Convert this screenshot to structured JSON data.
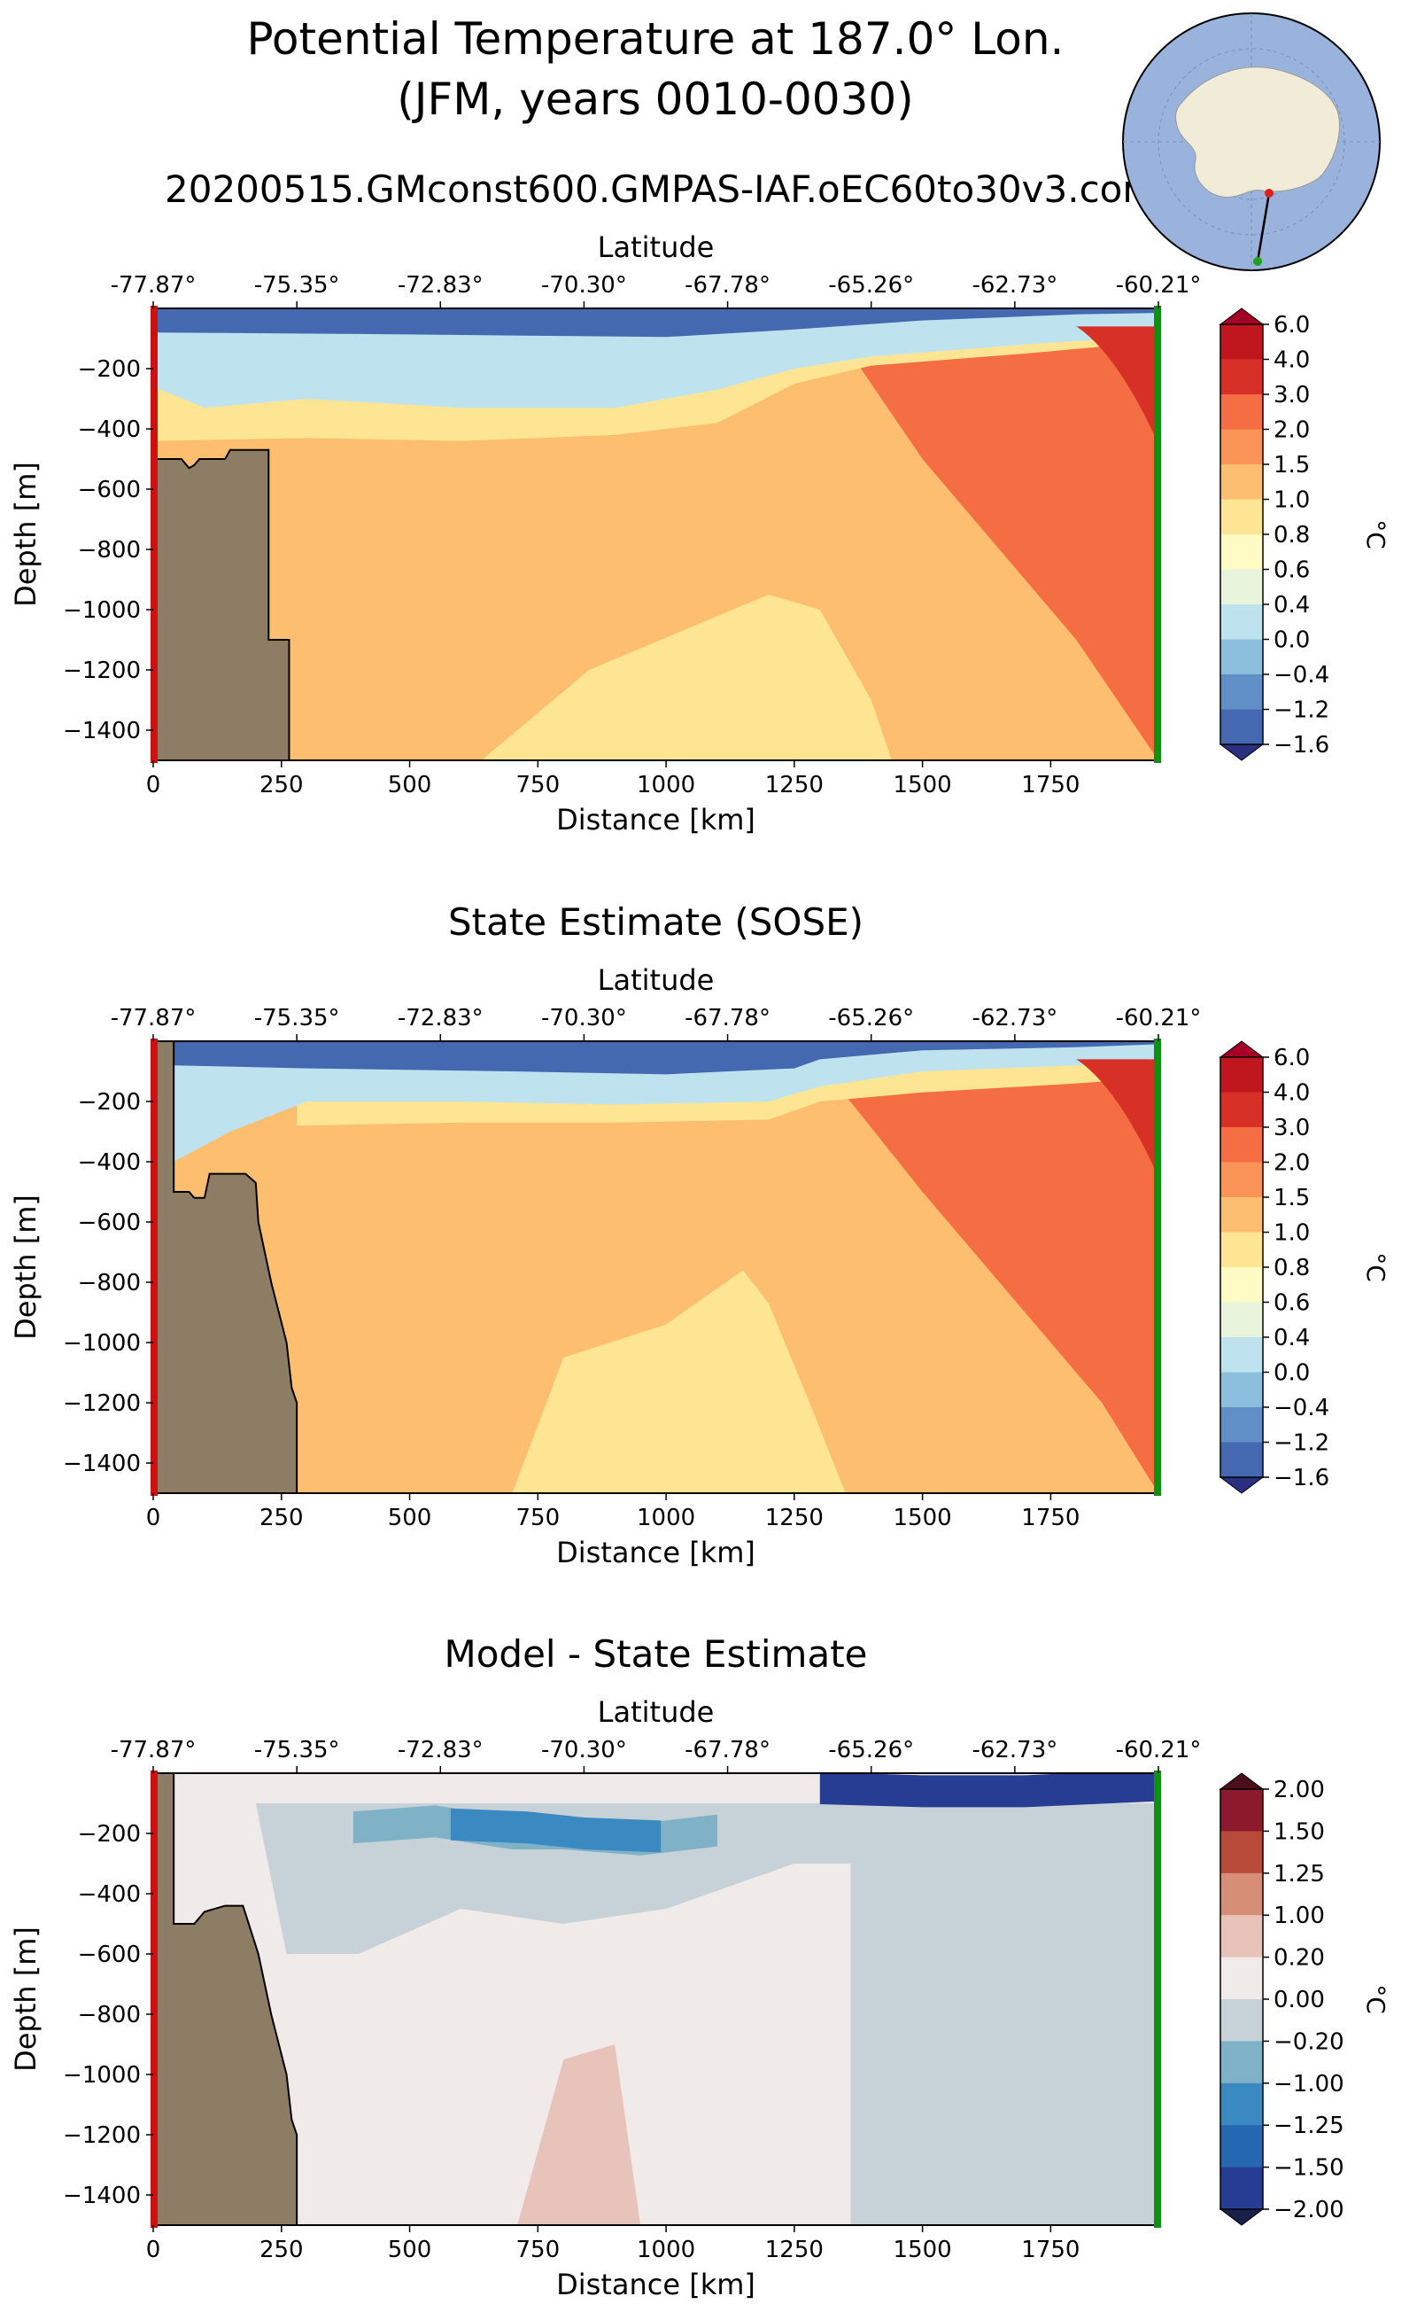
{
  "figure": {
    "title_line1": "Potential Temperature at 187.0° Lon.",
    "title_line2": "(JFM, years 0010-0030)",
    "subtitle": "20200515.GMconst600.GMPAS-IAF.oEC60to30v3.con"
  },
  "chart_data": [
    {
      "type": "heatmap",
      "title": "",
      "xlabel": "Distance [km]",
      "ylabel": "Depth [m]",
      "top_axis_label": "Latitude",
      "xlim": [
        0,
        1960
      ],
      "ylim": [
        -1500,
        0
      ],
      "x_ticks": [
        0,
        250,
        500,
        750,
        1000,
        1250,
        1500,
        1750
      ],
      "y_ticks": [
        -200,
        -400,
        -600,
        -800,
        -1000,
        -1200,
        -1400
      ],
      "lat_ticks": [
        "-77.87°",
        "-75.35°",
        "-72.83°",
        "-70.30°",
        "-67.78°",
        "-65.26°",
        "-62.73°",
        "-60.21°"
      ],
      "colorbar_label": "°C",
      "colorbar_levels": [
        "6.0",
        "4.0",
        "3.0",
        "2.0",
        "1.5",
        "1.0",
        "0.8",
        "0.6",
        "0.4",
        "0.0",
        "−0.4",
        "−1.2",
        "−1.6"
      ],
      "colorbar_colors": [
        "#c0171f",
        "#d73027",
        "#f46d43",
        "#f99456",
        "#fdbe70",
        "#fee594",
        "#fffbc4",
        "#e8f5dc",
        "#bfe3ee",
        "#8cbfdd",
        "#5f8fc6",
        "#4569b0",
        "#313695"
      ],
      "bathymetry": {
        "x": [
          0,
          10,
          55,
          65,
          70,
          80,
          90,
          100,
          140,
          150,
          160,
          225,
          225,
          265,
          265
        ],
        "depth": [
          -500,
          -500,
          -500,
          -520,
          -530,
          -520,
          -500,
          -500,
          -500,
          -470,
          -470,
          -470,
          -1100,
          -1100,
          -1500
        ]
      },
      "section_contours": [
        {
          "level": "-1.6",
          "x": [
            0,
            400,
            700,
            1000,
            1250,
            1500,
            1800,
            1960
          ],
          "depth": [
            -80,
            -85,
            -90,
            -95,
            -70,
            -40,
            -20,
            -15
          ]
        },
        {
          "level": "0.0",
          "x": [
            0,
            100,
            300,
            600,
            900,
            1100,
            1250,
            1400,
            1700,
            1960
          ],
          "depth": [
            -260,
            -330,
            -300,
            -330,
            -330,
            -270,
            -200,
            -160,
            -120,
            -90
          ]
        },
        {
          "level": "1.0",
          "x": [
            0,
            300,
            600,
            900,
            1100,
            1250,
            1400,
            1700,
            1960
          ],
          "depth": [
            -440,
            -430,
            -440,
            -420,
            -380,
            -250,
            -190,
            -150,
            -110
          ]
        },
        {
          "level": "0.8 (deep)",
          "x": [
            640,
            850,
            1200,
            1300,
            1400,
            1440
          ],
          "depth": [
            -1500,
            -1200,
            -950,
            -1000,
            -1300,
            -1500
          ]
        },
        {
          "level": "2.0",
          "x": [
            1380,
            1500,
            1650,
            1800,
            1960
          ],
          "depth": [
            -200,
            -500,
            -800,
            -1100,
            -1500
          ]
        }
      ]
    },
    {
      "type": "heatmap",
      "title": "State Estimate (SOSE)",
      "xlabel": "Distance [km]",
      "ylabel": "Depth [m]",
      "top_axis_label": "Latitude",
      "xlim": [
        0,
        1960
      ],
      "ylim": [
        -1500,
        0
      ],
      "x_ticks": [
        0,
        250,
        500,
        750,
        1000,
        1250,
        1500,
        1750
      ],
      "y_ticks": [
        -200,
        -400,
        -600,
        -800,
        -1000,
        -1200,
        -1400
      ],
      "lat_ticks": [
        "-77.87°",
        "-75.35°",
        "-72.83°",
        "-70.30°",
        "-67.78°",
        "-65.26°",
        "-62.73°",
        "-60.21°"
      ],
      "colorbar_label": "°C",
      "colorbar_levels": [
        "6.0",
        "4.0",
        "3.0",
        "2.0",
        "1.5",
        "1.0",
        "0.8",
        "0.6",
        "0.4",
        "0.0",
        "−0.4",
        "−1.2",
        "−1.6"
      ],
      "colorbar_colors": [
        "#c0171f",
        "#d73027",
        "#f46d43",
        "#f99456",
        "#fdbe70",
        "#fee594",
        "#fffbc4",
        "#e8f5dc",
        "#bfe3ee",
        "#8cbfdd",
        "#5f8fc6",
        "#4569b0",
        "#313695"
      ],
      "bathymetry": {
        "x": [
          0,
          40,
          40,
          70,
          80,
          100,
          110,
          120,
          140,
          150,
          180,
          200,
          205,
          230,
          260,
          270,
          280,
          280
        ],
        "depth": [
          0,
          0,
          -500,
          -500,
          -520,
          -520,
          -440,
          -440,
          -440,
          -440,
          -440,
          -470,
          -600,
          -800,
          -1000,
          -1150,
          -1200,
          -1500
        ]
      },
      "section_contours": [
        {
          "level": "-1.6",
          "x": [
            40,
            300,
            700,
            1000,
            1250,
            1300,
            1500,
            1800,
            1960
          ],
          "depth": [
            -80,
            -90,
            -100,
            -110,
            -90,
            -60,
            -30,
            -20,
            -10
          ]
        },
        {
          "level": "0.0",
          "x": [
            40,
            150,
            300,
            600,
            900,
            1200,
            1300,
            1500,
            1800,
            1960
          ],
          "depth": [
            -400,
            -300,
            -200,
            -200,
            -210,
            -200,
            -150,
            -100,
            -80,
            -60
          ]
        },
        {
          "level": "1.0",
          "x": [
            280,
            600,
            900,
            1200,
            1300,
            1500,
            1800,
            1960
          ],
          "depth": [
            -280,
            -270,
            -270,
            -260,
            -200,
            -170,
            -140,
            -120
          ]
        },
        {
          "level": "0.8 (deep)",
          "x": [
            700,
            800,
            1000,
            1150,
            1200,
            1280,
            1350
          ],
          "depth": [
            -1500,
            -1050,
            -940,
            -760,
            -870,
            -1200,
            -1500
          ]
        },
        {
          "level": "2.0",
          "x": [
            1350,
            1500,
            1700,
            1850,
            1960
          ],
          "depth": [
            -180,
            -500,
            -900,
            -1200,
            -1500
          ]
        }
      ]
    },
    {
      "type": "heatmap",
      "title": "Model - State Estimate",
      "xlabel": "Distance [km]",
      "ylabel": "Depth [m]",
      "top_axis_label": "Latitude",
      "xlim": [
        0,
        1960
      ],
      "ylim": [
        -1500,
        0
      ],
      "x_ticks": [
        0,
        250,
        500,
        750,
        1000,
        1250,
        1500,
        1750
      ],
      "y_ticks": [
        -200,
        -400,
        -600,
        -800,
        -1000,
        -1200,
        -1400
      ],
      "lat_ticks": [
        "-77.87°",
        "-75.35°",
        "-72.83°",
        "-70.30°",
        "-67.78°",
        "-65.26°",
        "-62.73°",
        "-60.21°"
      ],
      "colorbar_label": "°C",
      "colorbar_levels": [
        "2.00",
        "1.50",
        "1.25",
        "1.00",
        "0.20",
        "0.00",
        "−0.20",
        "−1.00",
        "−1.25",
        "−1.50",
        "−2.00"
      ],
      "colorbar_colors": [
        "#8b1a2c",
        "#b84a39",
        "#d78e76",
        "#e8c3b9",
        "#f0eae8",
        "#c6d2d8",
        "#7fb1c7",
        "#3a8ac1",
        "#2567b0",
        "#273c93"
      ],
      "bathymetry": {
        "x": [
          0,
          40,
          40,
          80,
          100,
          140,
          150,
          175,
          205,
          230,
          260,
          270,
          280,
          280
        ],
        "depth": [
          0,
          0,
          -500,
          -500,
          -460,
          -440,
          -440,
          -440,
          -600,
          -800,
          -1000,
          -1150,
          -1200,
          -1500
        ]
      },
      "section_contours": [
        {
          "level": "-0.20",
          "x": [
            200,
            260,
            400,
            600,
            800,
            1000,
            1250,
            1360,
            1360
          ],
          "depth": [
            -100,
            -600,
            -600,
            -450,
            -500,
            -450,
            -300,
            -300,
            -1500
          ]
        },
        {
          "level": "-1.00",
          "x": [
            390,
            550,
            700,
            800,
            950,
            1100
          ],
          "depth": [
            -180,
            -160,
            -200,
            -200,
            -220,
            -190
          ]
        },
        {
          "level": "-1.50",
          "x": [
            580,
            730,
            840,
            990
          ],
          "depth": [
            -170,
            -180,
            -200,
            -210
          ]
        },
        {
          "level": "-2.00",
          "x": [
            1300,
            1500,
            1700,
            1960
          ],
          "depth": [
            -50,
            -60,
            -60,
            -40
          ]
        },
        {
          "level": "0.20",
          "x": [
            710,
            800,
            900,
            950
          ],
          "depth": [
            -1500,
            -950,
            -900,
            -1500
          ]
        }
      ]
    }
  ]
}
